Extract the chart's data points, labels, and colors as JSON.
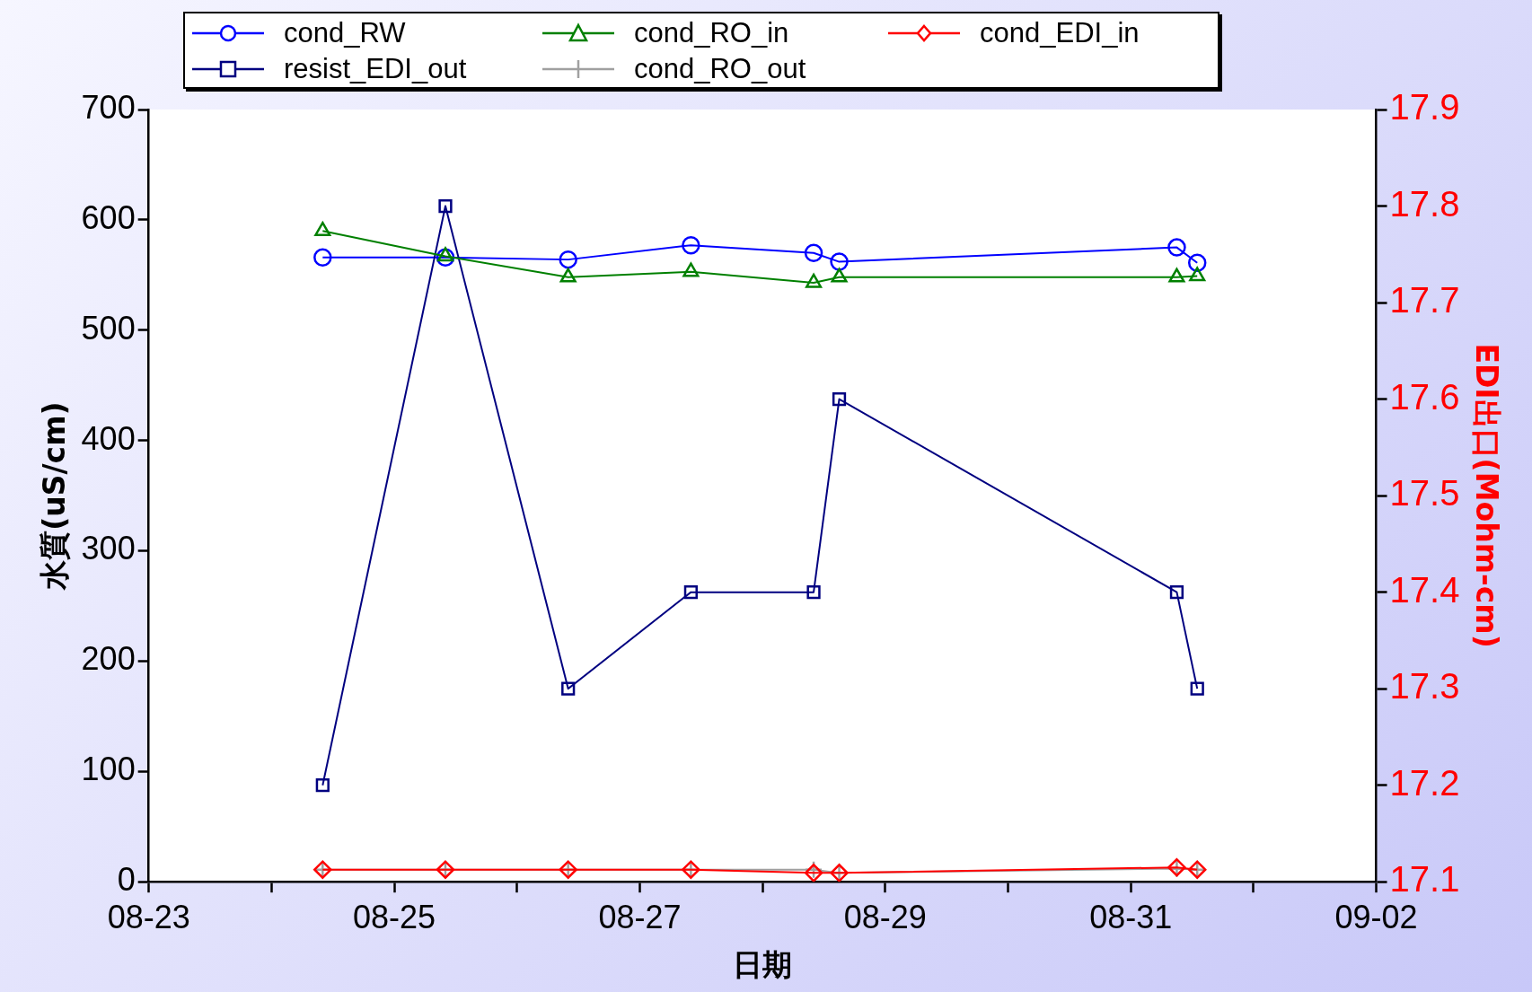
{
  "chart_data": {
    "type": "line",
    "xlabel": "日期",
    "ylabel": "水質(uS/cm)",
    "y2label": "EDI出口(Mohm-cm)",
    "x": [
      "--08-24T10:00",
      "--08-25T10:00",
      "--08-26T10:00",
      "--08-27T10:00",
      "--08-28T10:00",
      "--08-28T15:00",
      "--08-31T09:00",
      "--08-31T13:00"
    ],
    "series": [
      {
        "name": "cond_RW",
        "color": "#0000ff",
        "marker": "circle",
        "values": [
          566,
          566,
          564,
          577,
          570,
          562,
          575,
          561
        ]
      },
      {
        "name": "resist_EDI_out",
        "color": "#000080",
        "marker": "square",
        "axis": "y2",
        "values": [
          17.2,
          17.8,
          17.3,
          17.4,
          17.4,
          17.6,
          17.4,
          17.3
        ]
      },
      {
        "name": "cond_RO_in",
        "color": "#008000",
        "marker": "triangle",
        "values": [
          590,
          567,
          548,
          553,
          543,
          548,
          548,
          549
        ]
      },
      {
        "name": "cond_RO_out",
        "color": "#a0a0a0",
        "marker": "cross",
        "values": [
          11,
          11,
          11,
          11,
          11,
          8,
          12,
          11
        ]
      },
      {
        "name": "cond_EDI_in",
        "color": "#ff0000",
        "marker": "diamond",
        "values": [
          11,
          11,
          11,
          11,
          8,
          8,
          13,
          11
        ]
      }
    ],
    "xlim": [
      "--08-23",
      "--09-02"
    ],
    "xticks": [
      {
        "value": "--08-23",
        "label": "08-23"
      },
      {
        "value": "--08-24",
        "label": null
      },
      {
        "value": "--08-25",
        "label": "08-25"
      },
      {
        "value": "--08-26",
        "label": null
      },
      {
        "value": "--08-27",
        "label": "08-27"
      },
      {
        "value": "--08-28",
        "label": null
      },
      {
        "value": "--08-29",
        "label": "08-29"
      },
      {
        "value": "--08-30",
        "label": null
      },
      {
        "value": "--08-31",
        "label": "08-31"
      },
      {
        "value": "--09-01",
        "label": null
      },
      {
        "value": "--09-02",
        "label": "09-02"
      }
    ],
    "ylim": [
      0,
      700
    ],
    "yticks": [
      0,
      100,
      200,
      300,
      400,
      500,
      600,
      700
    ],
    "y2lim": [
      17.1,
      17.9
    ],
    "y2ticks": [
      17.1,
      17.2,
      17.3,
      17.4,
      17.5,
      17.6,
      17.7,
      17.8,
      17.9
    ],
    "grid": false,
    "legend": "top",
    "line_style": "solid"
  }
}
